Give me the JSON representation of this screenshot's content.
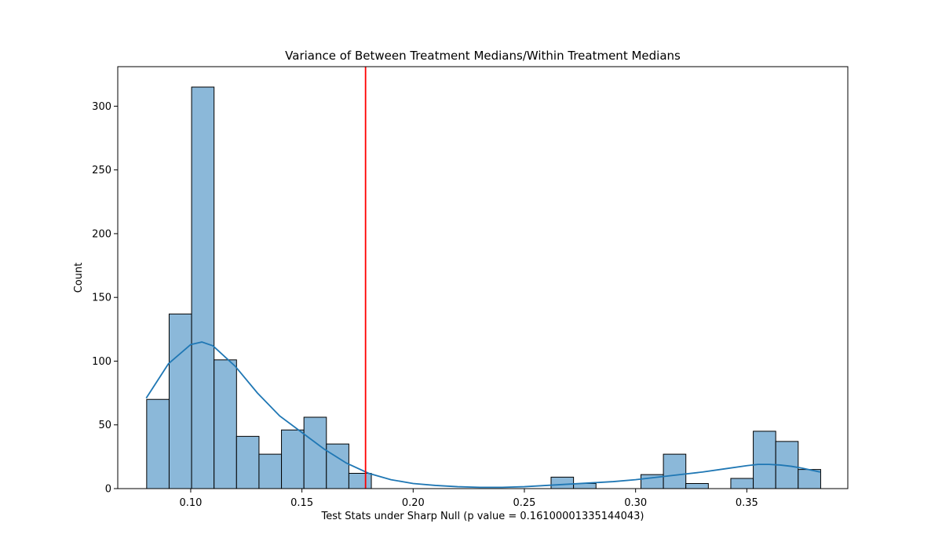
{
  "chart_data": {
    "type": "bar",
    "title": "Variance of Between Treatment Medians/Within Treatment Medians",
    "xlabel": "Test Stats under Sharp Null (p value = 0.16100001335144043)",
    "ylabel": "Count",
    "xlim": [
      0.0672,
      0.3954
    ],
    "ylim": [
      0,
      331
    ],
    "xticks": [
      0.1,
      0.15,
      0.2,
      0.25,
      0.3,
      0.35
    ],
    "xtick_labels": [
      "0.10",
      "0.15",
      "0.20",
      "0.25",
      "0.30",
      "0.35"
    ],
    "yticks": [
      0,
      50,
      100,
      150,
      200,
      250,
      300
    ],
    "ytick_labels": [
      "0",
      "50",
      "100",
      "150",
      "200",
      "250",
      "300"
    ],
    "bin_edges": [
      0.0802,
      0.0903,
      0.1004,
      0.1105,
      0.1206,
      0.1307,
      0.1408,
      0.1509,
      0.161,
      0.1711,
      0.1812,
      0.1913,
      0.2014,
      0.2115,
      0.2216,
      0.2317,
      0.2418,
      0.2519,
      0.262,
      0.2721,
      0.2822,
      0.2923,
      0.3024,
      0.3125,
      0.3226,
      0.3327,
      0.3428,
      0.3529,
      0.363,
      0.3731,
      0.3832
    ],
    "counts": [
      70,
      137,
      315,
      101,
      41,
      27,
      46,
      56,
      35,
      12,
      0,
      0,
      0,
      0,
      0,
      0,
      0,
      0,
      9,
      4,
      0,
      0,
      11,
      27,
      4,
      0,
      8,
      45,
      37,
      15
    ],
    "kde": {
      "x": [
        0.08,
        0.09,
        0.1,
        0.105,
        0.11,
        0.12,
        0.13,
        0.14,
        0.15,
        0.16,
        0.17,
        0.18,
        0.19,
        0.2,
        0.21,
        0.22,
        0.23,
        0.24,
        0.25,
        0.26,
        0.27,
        0.28,
        0.29,
        0.3,
        0.31,
        0.32,
        0.33,
        0.34,
        0.35,
        0.355,
        0.36,
        0.365,
        0.37,
        0.375,
        0.383
      ],
      "y": [
        71,
        98,
        113,
        115,
        112,
        96,
        75,
        57,
        44,
        31,
        20,
        12,
        7,
        4,
        2.5,
        1.5,
        1,
        1,
        1.5,
        2.5,
        3.5,
        4.5,
        5.5,
        7,
        9,
        11,
        13,
        15.5,
        18,
        19,
        19,
        18.5,
        17.5,
        16,
        13
      ]
    },
    "vline_x": 0.1786,
    "colors": {
      "bar_fill": "#8bb8d9",
      "bar_edge": "#000000",
      "kde_line": "#1f77b4",
      "vline": "#ff0000"
    },
    "grid": false,
    "legend": "none"
  }
}
